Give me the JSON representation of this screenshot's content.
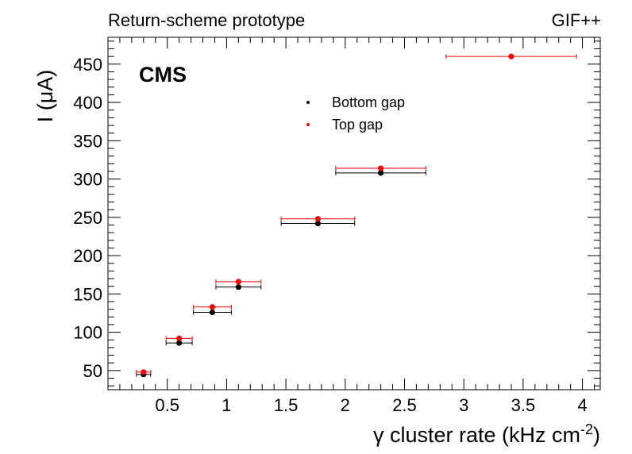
{
  "header": {
    "left": "Return-scheme prototype",
    "right": "GIF++"
  },
  "chart_data": {
    "type": "scatter",
    "experiment_label": "CMS",
    "xlabel": "γ cluster rate (kHz cm",
    "xlabel_sup": "-2",
    "xlabel_close": ")",
    "ylabel": "I (μA)",
    "xlim": [
      0.0,
      4.15
    ],
    "ylim": [
      25,
      485
    ],
    "x_ticks": [
      0.5,
      1,
      1.5,
      2,
      2.5,
      3,
      3.5,
      4
    ],
    "x_tick_labels": [
      "0.5",
      "1",
      "1.5",
      "2",
      "2.5",
      "3",
      "3.5",
      "4"
    ],
    "y_ticks": [
      50,
      100,
      150,
      200,
      250,
      300,
      350,
      400,
      450
    ],
    "y_tick_labels": [
      "50",
      "100",
      "150",
      "200",
      "250",
      "300",
      "350",
      "400",
      "450"
    ],
    "legend_position": "top-center",
    "grid": false,
    "series": [
      {
        "name": "Bottom gap",
        "color": "#000000",
        "points": [
          {
            "x": 0.3,
            "xerr": 0.06,
            "y": 45
          },
          {
            "x": 0.6,
            "xerr": 0.11,
            "y": 86
          },
          {
            "x": 0.88,
            "xerr": 0.16,
            "y": 126
          },
          {
            "x": 1.1,
            "xerr": 0.19,
            "y": 159
          },
          {
            "x": 1.77,
            "xerr": 0.31,
            "y": 242
          },
          {
            "x": 2.3,
            "xerr": 0.38,
            "y": 308
          }
        ]
      },
      {
        "name": "Top gap",
        "color": "#ff0000",
        "points": [
          {
            "x": 0.3,
            "xerr": 0.06,
            "y": 48
          },
          {
            "x": 0.6,
            "xerr": 0.11,
            "y": 92
          },
          {
            "x": 0.88,
            "xerr": 0.16,
            "y": 133
          },
          {
            "x": 1.1,
            "xerr": 0.19,
            "y": 166
          },
          {
            "x": 1.77,
            "xerr": 0.31,
            "y": 248
          },
          {
            "x": 2.3,
            "xerr": 0.38,
            "y": 314
          },
          {
            "x": 3.4,
            "xerr": 0.55,
            "y": 460
          }
        ]
      }
    ]
  }
}
